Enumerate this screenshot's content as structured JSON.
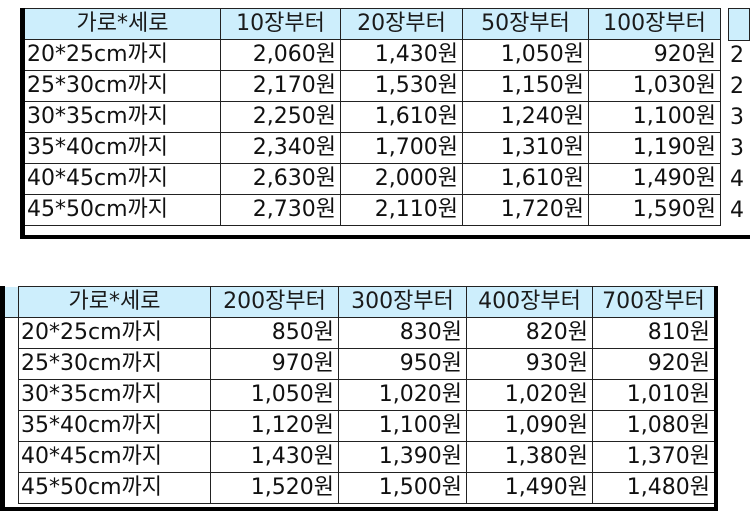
{
  "tables": [
    {
      "headers": [
        "가로*세로",
        "10장부터",
        "20장부터",
        "50장부터",
        "100장부터"
      ],
      "rows": [
        [
          "20*25cm까지",
          "2,060원",
          "1,430원",
          "1,050원",
          "920원"
        ],
        [
          "25*30cm까지",
          "2,170원",
          "1,530원",
          "1,150원",
          "1,030원"
        ],
        [
          "30*35cm까지",
          "2,250원",
          "1,610원",
          "1,240원",
          "1,100원"
        ],
        [
          "35*40cm까지",
          "2,340원",
          "1,700원",
          "1,310원",
          "1,190원"
        ],
        [
          "40*45cm까지",
          "2,630원",
          "2,000원",
          "1,610원",
          "1,490원"
        ],
        [
          "45*50cm까지",
          "2,730원",
          "2,110원",
          "1,720원",
          "1,590원"
        ]
      ],
      "cut_right": [
        "2",
        "2",
        "3",
        "3",
        "4",
        "4"
      ]
    },
    {
      "headers": [
        "가로*세로",
        "200장부터",
        "300장부터",
        "400장부터",
        "700장부터"
      ],
      "rows": [
        [
          "20*25cm까지",
          "850원",
          "830원",
          "820원",
          "810원"
        ],
        [
          "25*30cm까지",
          "970원",
          "950원",
          "930원",
          "920원"
        ],
        [
          "30*35cm까지",
          "1,050원",
          "1,020원",
          "1,020원",
          "1,010원"
        ],
        [
          "35*40cm까지",
          "1,120원",
          "1,100원",
          "1,090원",
          "1,080원"
        ],
        [
          "40*45cm까지",
          "1,430원",
          "1,390원",
          "1,380원",
          "1,370원"
        ],
        [
          "45*50cm까지",
          "1,520원",
          "1,500원",
          "1,490원",
          "1,480원"
        ]
      ]
    }
  ]
}
